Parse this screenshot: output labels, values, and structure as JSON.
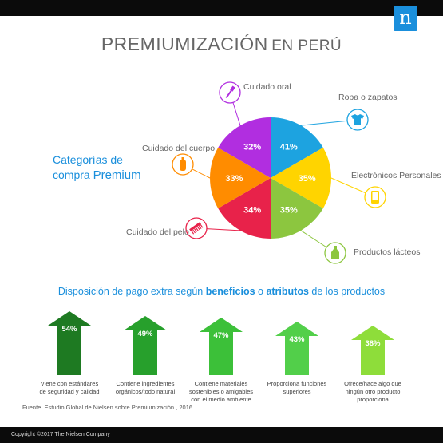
{
  "header": {
    "logo_letter": "n"
  },
  "title": {
    "main": "PREMIUMIZACIÓN",
    "sub": "EN PERÚ"
  },
  "premium_label": {
    "line1": "Categorías de",
    "line2a": "compra ",
    "line2b": "Premium"
  },
  "chart_data": [
    {
      "type": "pie",
      "slices": [
        {
          "label": "Ropa o zapatos",
          "value": 41,
          "display": "41%",
          "color": "#1da3e0",
          "icon": "tshirt-icon"
        },
        {
          "label": "Electrónicos Personales",
          "value": 35,
          "display": "35%",
          "color": "#ffd400",
          "icon": "phone-icon"
        },
        {
          "label": "Productos lácteos",
          "value": 35,
          "display": "35%",
          "color": "#8cc63f",
          "icon": "milk-bottle-icon"
        },
        {
          "label": "Cuidado del pelo",
          "value": 34,
          "display": "34%",
          "color": "#e8224a",
          "icon": "comb-icon"
        },
        {
          "label": "Cuidado del cuerpo",
          "value": 33,
          "display": "33%",
          "color": "#ff8c00",
          "icon": "lotion-bottle-icon"
        },
        {
          "label": "Cuidado oral",
          "value": 32,
          "display": "32%",
          "color": "#b12ee0",
          "icon": "toothbrush-icon"
        }
      ]
    },
    {
      "type": "bar",
      "title_parts": {
        "pre": "Disposición de pago extra según ",
        "b1": "beneficios",
        "mid": " o ",
        "b2": "atributos",
        "post": " de los productos"
      },
      "categories": [
        "Viene con estándares de seguridad y calidad",
        "Contiene ingredientes orgánicos/todo natural",
        "Contiene materiales sostenibles o amigables con el medio ambiente",
        "Proporciona funciones superiores",
        "Ofrece/hace algo que ningún otro producto proporciona"
      ],
      "values": [
        54,
        49,
        47,
        43,
        38
      ],
      "display": [
        "54%",
        "49%",
        "47%",
        "43%",
        "38%"
      ],
      "colors": [
        "#1e7a22",
        "#27a02c",
        "#3cc039",
        "#52cf4a",
        "#8edd3a"
      ]
    }
  ],
  "captions": [
    {
      "l1": "Viene con estándares",
      "l2": "de seguridad y calidad",
      "l3": ""
    },
    {
      "l1": "Contiene ingredientes",
      "l2": "orgánicos/todo natural",
      "l3": ""
    },
    {
      "l1": "Contiene materiales",
      "l2": "sostenibles o amigables",
      "l3": "con el medio ambiente"
    },
    {
      "l1": "Proporciona funciones",
      "l2": "superiores",
      "l3": ""
    },
    {
      "l1": "Ofrece/hace algo que",
      "l2": "ningún otro producto",
      "l3": "proporciona"
    }
  ],
  "source": "Fuente: Estudio Global de Nielsen sobre  Premiumización , 2016.",
  "footer": "Copyright ©2017 The Nielsen Company"
}
